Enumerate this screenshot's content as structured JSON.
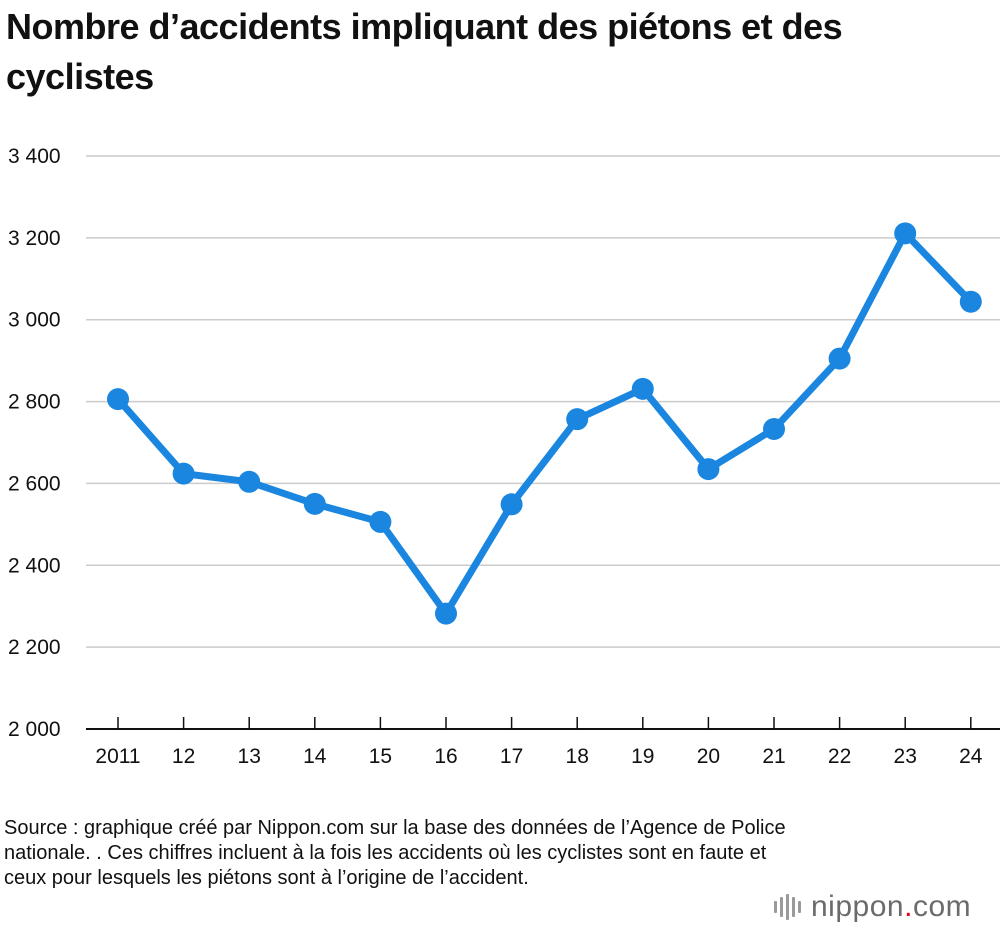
{
  "chart_data": {
    "type": "line",
    "title": "Nombre d’accidents impliquant des piétons et des cyclistes",
    "categories": [
      "2011",
      "12",
      "13",
      "14",
      "15",
      "16",
      "17",
      "18",
      "19",
      "20",
      "21",
      "22",
      "23",
      "24"
    ],
    "series": [
      {
        "values": [
          2806,
          2624,
          2604,
          2550,
          2506,
          2282,
          2549,
          2757,
          2831,
          2635,
          2733,
          2905,
          3211,
          3044
        ]
      }
    ],
    "ylim": [
      2000,
      3400
    ],
    "yticks": [
      2000,
      2200,
      2400,
      2600,
      2800,
      3000,
      3200,
      3400
    ],
    "ytick_labels": [
      "2 000",
      "2 200",
      "2 400",
      "2 600",
      "2 800",
      "3 000",
      "3 200",
      "3 400"
    ],
    "xlabel": "",
    "ylabel": "",
    "grid": "horizontal",
    "legend": "none",
    "colors": {
      "line": "#1a86e0",
      "grid": "#cccccc",
      "axis": "#111111"
    }
  },
  "footer": {
    "source": "Source : graphique créé par Nippon.com sur la base des données de l’Agence de Police nationale. . Ces chiffres incluent à la fois les accidents où les cyclistes sont en faute et ceux pour lesquels les piétons sont à l’origine de l’accident.",
    "logo_main": "nippon",
    "logo_dot": ".",
    "logo_tld": "com"
  }
}
